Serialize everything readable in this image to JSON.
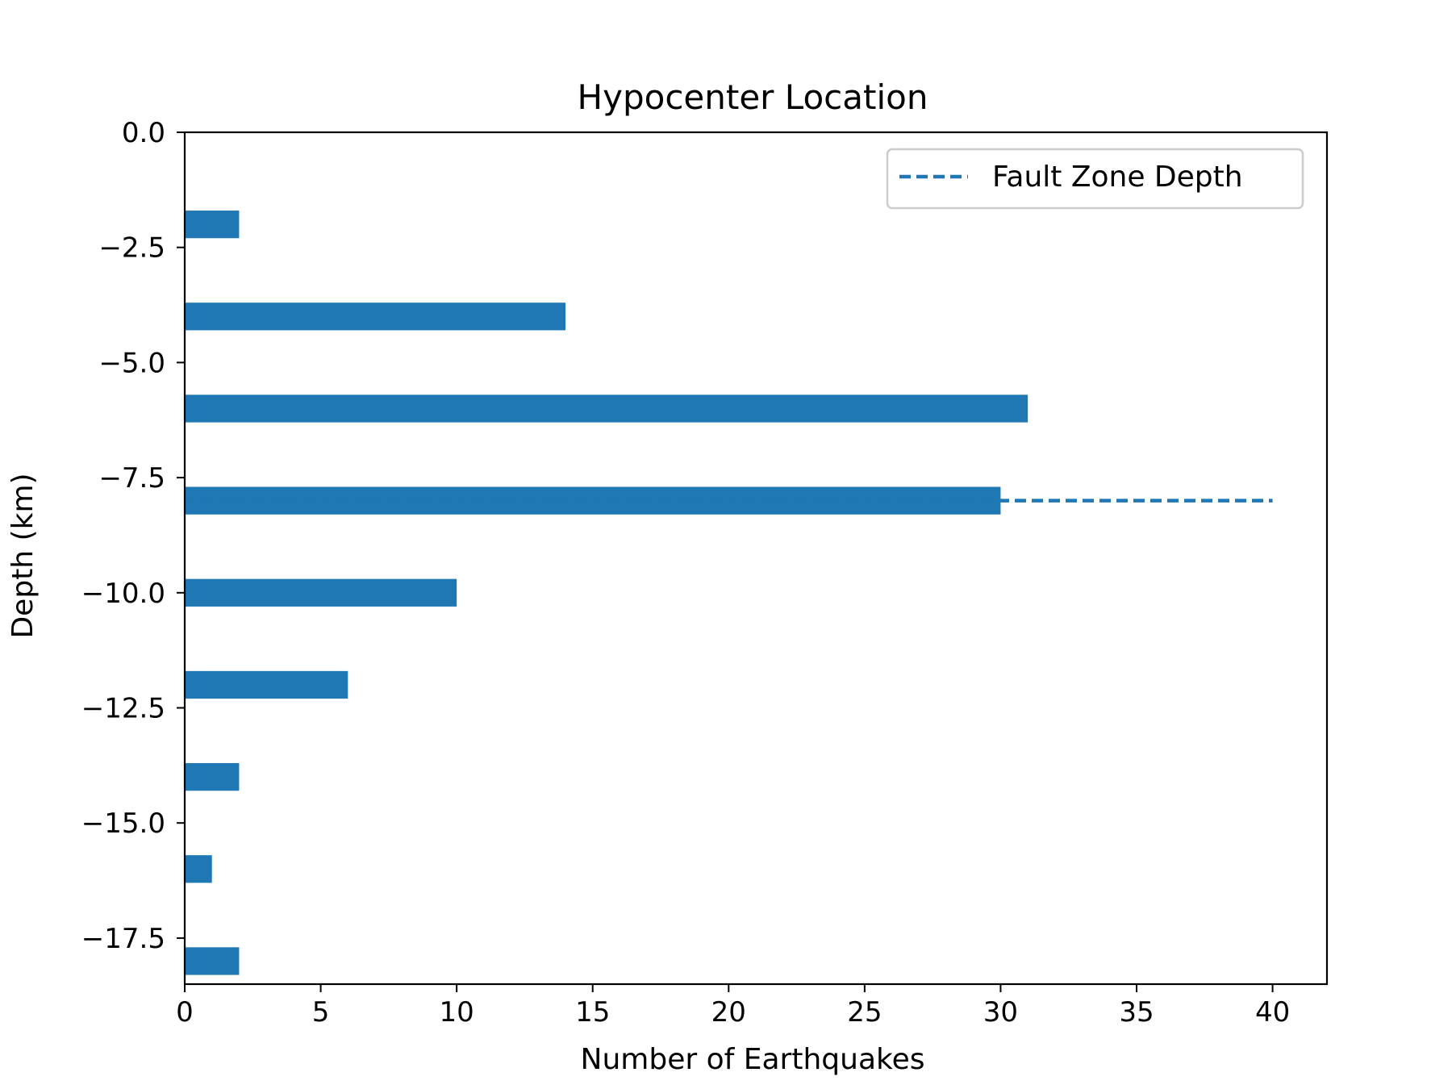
{
  "chart_data": {
    "type": "bar",
    "orientation": "horizontal",
    "title": "Hypocenter Location",
    "xlabel": "Number of Earthquakes",
    "ylabel": "Depth (km)",
    "xlim": [
      0,
      42
    ],
    "ylim": [
      -18.5,
      0
    ],
    "xticks": [
      0,
      5,
      10,
      15,
      20,
      25,
      30,
      35,
      40
    ],
    "xtick_labels": [
      "0",
      "5",
      "10",
      "15",
      "20",
      "25",
      "30",
      "35",
      "40"
    ],
    "yticks": [
      0,
      -2.5,
      -5,
      -7.5,
      -10,
      -12.5,
      -15,
      -17.5
    ],
    "ytick_labels": [
      "0.0",
      "−2.5",
      "−5.0",
      "−7.5",
      "−10.0",
      "−12.5",
      "−15.0",
      "−17.5"
    ],
    "grid": false,
    "bar_color": "#1f77b4",
    "series": [
      {
        "type": "barh",
        "bin_height": 0.6,
        "y": [
          -2,
          -4,
          -6,
          -8,
          -10,
          -12,
          -14,
          -16,
          -18
        ],
        "values": [
          2,
          14,
          31,
          30,
          10,
          6,
          2,
          1,
          2
        ]
      },
      {
        "type": "line",
        "name": "Fault Zone Depth",
        "style": "dashed",
        "color": "#1f77b4",
        "x": [
          0,
          40
        ],
        "y": [
          -8,
          -8
        ]
      }
    ],
    "legend": {
      "location": "top-right",
      "entries": [
        {
          "label": "Fault Zone Depth",
          "style": "dashed",
          "color": "#1f77b4"
        }
      ]
    }
  }
}
